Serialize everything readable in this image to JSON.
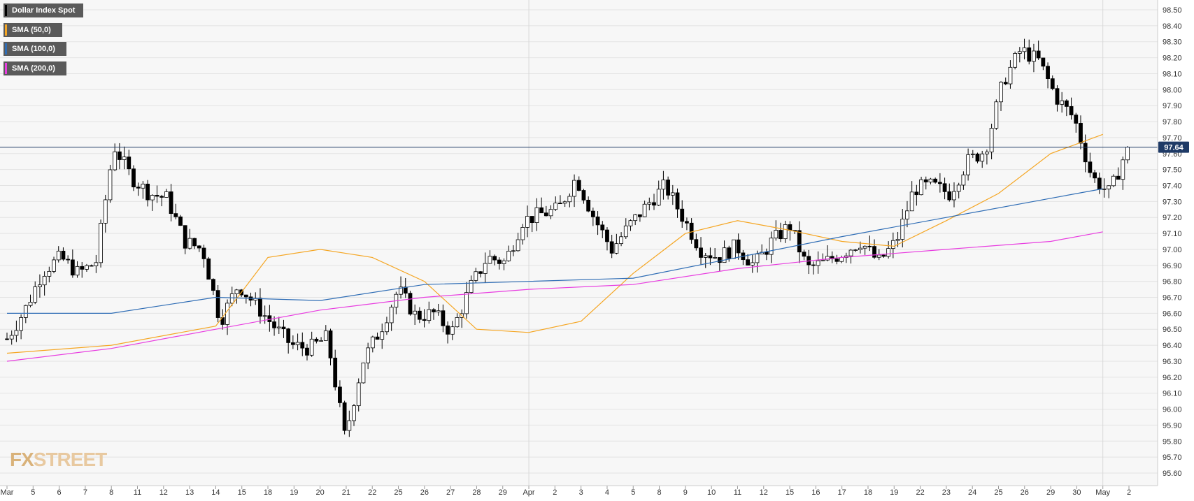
{
  "chart_data": {
    "type": "candlestick",
    "title": "",
    "instrument": "Dollar Index Spot",
    "last_price": "97.64",
    "last_value": 97.64,
    "ylim": [
      95.55,
      98.55
    ],
    "y_ticks": [
      "98.50",
      "98.40",
      "98.30",
      "98.20",
      "98.10",
      "98.00",
      "97.90",
      "97.80",
      "97.70",
      "97.60",
      "97.50",
      "97.40",
      "97.30",
      "97.20",
      "97.10",
      "97.00",
      "96.90",
      "96.80",
      "96.70",
      "96.60",
      "96.50",
      "96.40",
      "96.30",
      "96.20",
      "96.10",
      "96.00",
      "95.90",
      "95.80",
      "95.70",
      "95.60"
    ],
    "x_ticks": [
      "Mar",
      "5",
      "6",
      "7",
      "8",
      "11",
      "12",
      "13",
      "14",
      "15",
      "18",
      "19",
      "20",
      "21",
      "22",
      "25",
      "26",
      "27",
      "28",
      "29",
      "Apr",
      "2",
      "3",
      "4",
      "5",
      "8",
      "9",
      "10",
      "11",
      "12",
      "15",
      "16",
      "17",
      "18",
      "19",
      "22",
      "23",
      "24",
      "25",
      "26",
      "29",
      "30",
      "May",
      "2"
    ],
    "grid": true,
    "legend_position": "top-left",
    "legend": [
      {
        "name": "Dollar Index Spot",
        "color": "#000000"
      },
      {
        "name": "SMA (50,0)",
        "color": "#f5a623"
      },
      {
        "name": "SMA (100,0)",
        "color": "#2f6db5"
      },
      {
        "name": "SMA (200,0)",
        "color": "#e83de0"
      }
    ],
    "price_path": [
      96.44,
      96.62,
      96.86,
      96.95,
      96.85,
      96.92,
      97.65,
      97.45,
      97.35,
      97.32,
      97.05,
      97.0,
      96.55,
      96.78,
      96.65,
      96.52,
      96.4,
      96.38,
      96.45,
      95.82,
      96.3,
      96.5,
      96.75,
      96.58,
      96.6,
      96.48,
      96.75,
      96.95,
      96.92,
      97.18,
      97.22,
      97.25,
      97.45,
      97.2,
      97.0,
      97.15,
      97.28,
      97.4,
      97.2,
      97.0,
      96.95,
      97.02,
      96.9,
      97.05,
      97.15,
      96.88,
      96.92,
      96.98,
      97.05,
      96.92,
      97.05,
      97.38,
      97.4,
      97.35,
      97.55,
      97.62,
      98.05,
      98.25,
      98.18,
      97.95,
      97.82,
      97.45,
      97.35,
      97.64
    ],
    "series": [
      {
        "name": "SMA (50,0)",
        "color": "#f5a623",
        "points": [
          [
            0,
            96.35
          ],
          [
            4,
            96.4
          ],
          [
            8,
            96.52
          ],
          [
            10,
            96.95
          ],
          [
            12,
            97.0
          ],
          [
            14,
            96.95
          ],
          [
            16,
            96.8
          ],
          [
            18,
            96.5
          ],
          [
            20,
            96.48
          ],
          [
            22,
            96.55
          ],
          [
            24,
            96.85
          ],
          [
            26,
            97.1
          ],
          [
            28,
            97.18
          ],
          [
            30,
            97.12
          ],
          [
            32,
            97.05
          ],
          [
            34,
            97.02
          ],
          [
            36,
            97.18
          ],
          [
            38,
            97.35
          ],
          [
            40,
            97.6
          ],
          [
            42,
            97.72
          ]
        ]
      },
      {
        "name": "SMA (100,0)",
        "color": "#2f6db5",
        "points": [
          [
            0,
            96.6
          ],
          [
            4,
            96.6
          ],
          [
            8,
            96.7
          ],
          [
            12,
            96.68
          ],
          [
            16,
            96.78
          ],
          [
            20,
            96.8
          ],
          [
            24,
            96.82
          ],
          [
            28,
            96.95
          ],
          [
            32,
            97.08
          ],
          [
            36,
            97.2
          ],
          [
            40,
            97.32
          ],
          [
            42,
            97.38
          ]
        ]
      },
      {
        "name": "SMA (200,0)",
        "color": "#e83de0",
        "points": [
          [
            0,
            96.3
          ],
          [
            4,
            96.38
          ],
          [
            8,
            96.5
          ],
          [
            12,
            96.62
          ],
          [
            16,
            96.7
          ],
          [
            20,
            96.75
          ],
          [
            24,
            96.78
          ],
          [
            28,
            96.88
          ],
          [
            32,
            96.95
          ],
          [
            36,
            97.0
          ],
          [
            40,
            97.05
          ],
          [
            42,
            97.11
          ]
        ]
      }
    ]
  },
  "watermark": {
    "part1": "FX",
    "part2": "STREET"
  }
}
